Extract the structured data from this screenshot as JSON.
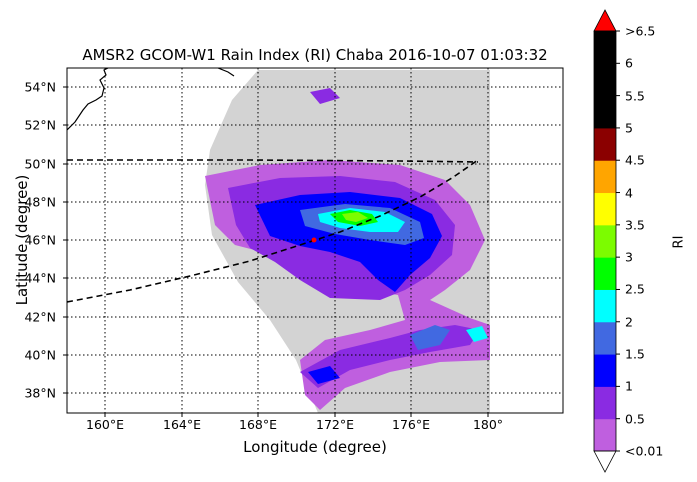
{
  "title": "AMSR2 GCOM-W1 Rain Index (RI) Chaba 2016-10-07 01:03:32",
  "xlabel": "Longitude (degree)",
  "ylabel": "Latitude (degree)",
  "colorbar": {
    "label": "RI",
    "ticks": [
      "<0.01",
      "0.5",
      "1",
      "1.5",
      "2",
      "2.5",
      "3",
      "3.5",
      "4",
      "4.5",
      "5",
      "5.5",
      "6",
      ">6.5"
    ],
    "colors": [
      "#bf5fdf",
      "#8a2be2",
      "#0000ff",
      "#4169e1",
      "#00ffff",
      "#00ff00",
      "#7cfc00",
      "#ffff00",
      "#ffa500",
      "#8b0000",
      "#000000",
      "#000000",
      "#000000"
    ],
    "over_color": "#ff0000",
    "under_color": "#ffffff"
  },
  "map": {
    "lon_ticks": [
      "160°E",
      "164°E",
      "168°E",
      "172°E",
      "176°E",
      "180°"
    ],
    "lat_ticks": [
      "54°N",
      "52°N",
      "50°N",
      "48°N",
      "46°N",
      "44°N",
      "42°N",
      "40°N",
      "38°N"
    ],
    "swath_color": "#d3d3d3",
    "storm_center_color": "#ff0000"
  }
}
